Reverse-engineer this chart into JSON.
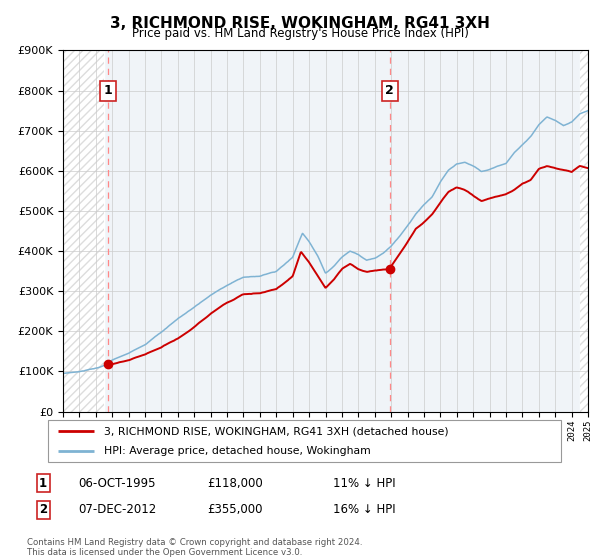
{
  "title": "3, RICHMOND RISE, WOKINGHAM, RG41 3XH",
  "subtitle": "Price paid vs. HM Land Registry's House Price Index (HPI)",
  "legend_line1": "3, RICHMOND RISE, WOKINGHAM, RG41 3XH (detached house)",
  "legend_line2": "HPI: Average price, detached house, Wokingham",
  "sale1_date": "06-OCT-1995",
  "sale1_price": 118000,
  "sale1_info": "11% ↓ HPI",
  "sale2_date": "07-DEC-2012",
  "sale2_price": 355000,
  "sale2_info": "16% ↓ HPI",
  "red_color": "#cc0000",
  "blue_color": "#7fb3d3",
  "dashed_color": "#ff8888",
  "background_color": "#ffffff",
  "grid_color": "#cccccc",
  "hatch_color": "#dddddd",
  "ylim_max": 900000,
  "xlim_min": 1993,
  "xlim_max": 2025,
  "footnote": "Contains HM Land Registry data © Crown copyright and database right 2024.\nThis data is licensed under the Open Government Licence v3.0.",
  "hpi_anchors_t": [
    1993.0,
    1994.0,
    1995.0,
    1995.75,
    1996.0,
    1997.0,
    1998.0,
    1999.0,
    2000.0,
    2001.0,
    2002.0,
    2003.0,
    2004.0,
    2005.0,
    2006.0,
    2007.0,
    2007.6,
    2008.0,
    2008.5,
    2009.0,
    2009.5,
    2010.0,
    2010.5,
    2011.0,
    2011.5,
    2012.0,
    2012.5,
    2013.0,
    2013.5,
    2014.0,
    2014.5,
    2015.0,
    2015.5,
    2016.0,
    2016.5,
    2017.0,
    2017.5,
    2018.0,
    2018.5,
    2019.0,
    2019.5,
    2020.0,
    2020.5,
    2021.0,
    2021.5,
    2022.0,
    2022.5,
    2023.0,
    2023.5,
    2024.0,
    2024.5,
    2025.0
  ],
  "hpi_anchors_v": [
    95000,
    100000,
    108000,
    118000,
    128000,
    145000,
    168000,
    198000,
    232000,
    260000,
    290000,
    315000,
    335000,
    338000,
    350000,
    385000,
    445000,
    425000,
    390000,
    345000,
    362000,
    385000,
    400000,
    392000,
    378000,
    382000,
    395000,
    412000,
    435000,
    462000,
    492000,
    515000,
    535000,
    572000,
    602000,
    618000,
    622000,
    612000,
    598000,
    604000,
    612000,
    618000,
    645000,
    665000,
    685000,
    715000,
    735000,
    725000,
    712000,
    722000,
    742000,
    750000
  ],
  "red_anchors_t": [
    1995.77,
    1996.0,
    1997.0,
    1998.0,
    1999.0,
    2000.0,
    2001.0,
    2002.0,
    2003.0,
    2004.0,
    2005.0,
    2006.0,
    2007.0,
    2007.5,
    2008.0,
    2008.5,
    2009.0,
    2009.5,
    2010.0,
    2010.5,
    2011.0,
    2011.5,
    2012.0,
    2012.92,
    2013.0,
    2013.5,
    2014.0,
    2014.5,
    2015.0,
    2015.5,
    2016.0,
    2016.5,
    2017.0,
    2017.5,
    2018.0,
    2018.5,
    2019.0,
    2019.5,
    2020.0,
    2020.5,
    2021.0,
    2021.5,
    2022.0,
    2022.5,
    2023.0,
    2023.5,
    2024.0,
    2024.5,
    2025.0
  ],
  "red_anchors_v": [
    118000,
    118000,
    128000,
    142000,
    160000,
    182000,
    210000,
    245000,
    272000,
    292000,
    295000,
    305000,
    338000,
    398000,
    372000,
    340000,
    308000,
    328000,
    355000,
    368000,
    355000,
    348000,
    352000,
    355000,
    362000,
    392000,
    422000,
    455000,
    472000,
    492000,
    522000,
    548000,
    558000,
    552000,
    538000,
    525000,
    530000,
    536000,
    542000,
    552000,
    568000,
    578000,
    605000,
    612000,
    607000,
    602000,
    597000,
    612000,
    607000
  ]
}
